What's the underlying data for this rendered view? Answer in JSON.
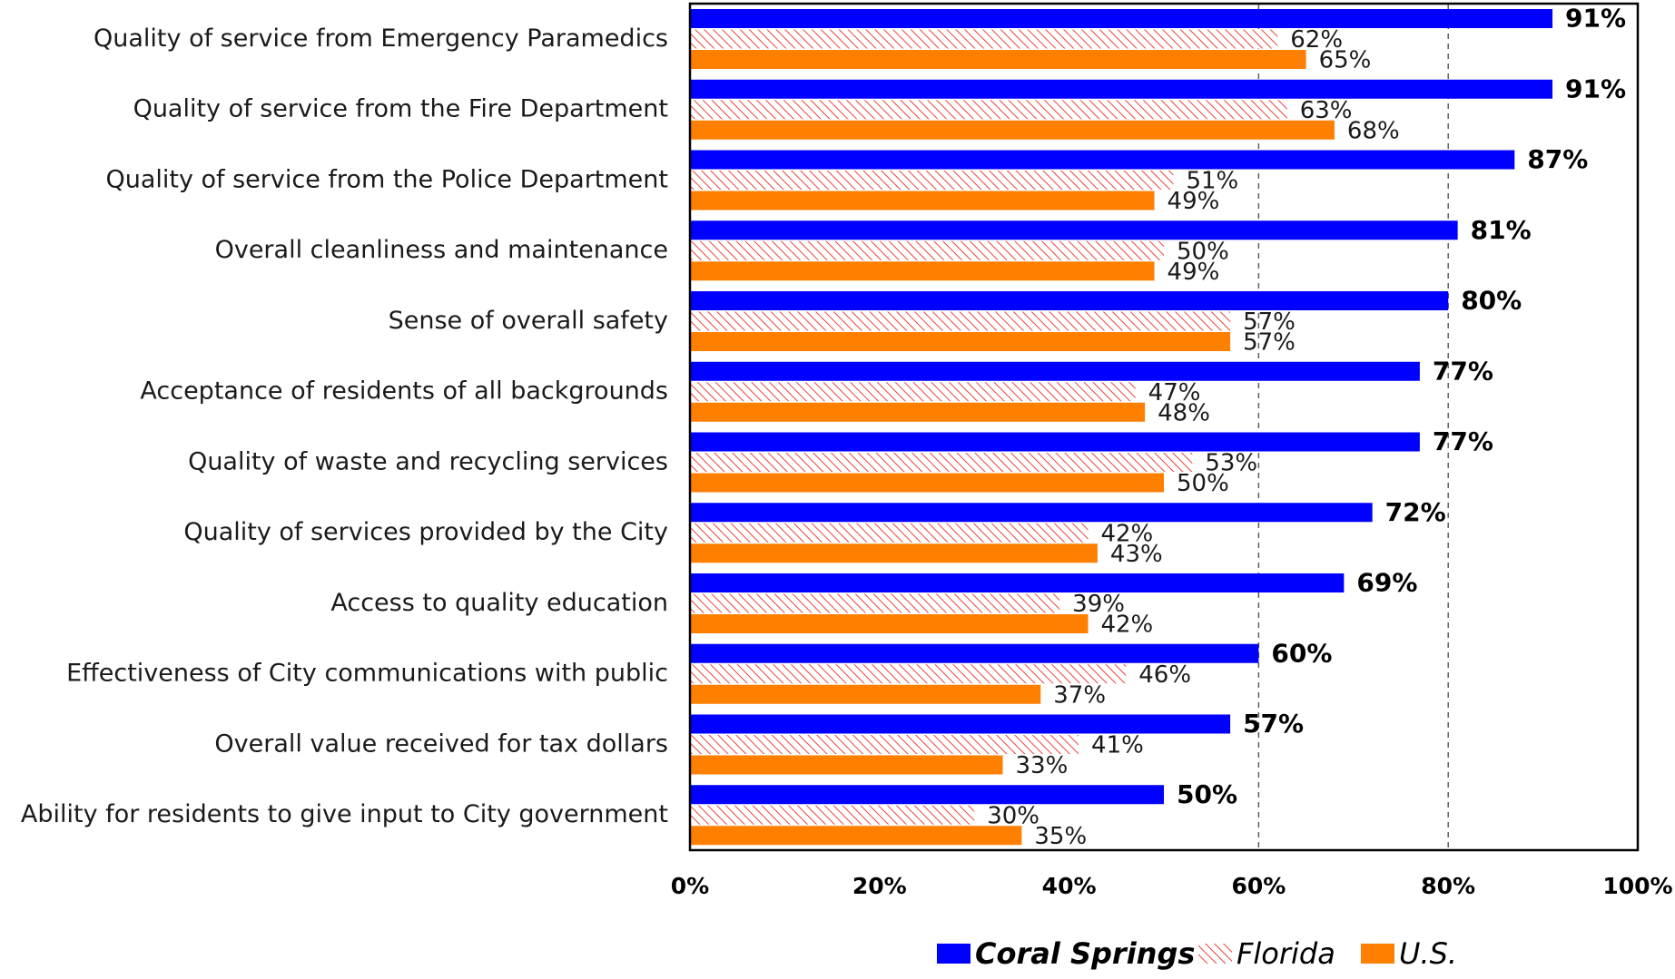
{
  "chart_data": {
    "type": "bar",
    "orientation": "horizontal",
    "categories": [
      "Quality of service from Emergency Paramedics",
      "Quality of service from the Fire Department",
      "Quality of service from the Police Department",
      "Overall cleanliness and maintenance",
      "Sense of overall safety",
      "Acceptance of residents of all backgrounds",
      "Quality of waste and recycling services",
      "Quality of services provided by the City",
      "Access to quality education",
      "Effectiveness of City communications with public",
      "Overall value received for tax dollars",
      "Ability for residents to give input to City government"
    ],
    "series": [
      {
        "name": "Coral Springs",
        "color": "#0000ff",
        "pattern": "solid",
        "values": [
          91,
          91,
          87,
          81,
          80,
          77,
          77,
          72,
          69,
          60,
          57,
          50
        ],
        "labels": [
          "91%",
          "91%",
          "87%",
          "81%",
          "80%",
          "77%",
          "77%",
          "72%",
          "69%",
          "60%",
          "57%",
          "50%"
        ]
      },
      {
        "name": "Florida",
        "color": "#e8433a",
        "pattern": "hatched",
        "values": [
          62,
          63,
          51,
          50,
          57,
          47,
          53,
          42,
          39,
          46,
          41,
          30
        ],
        "labels": [
          "62%",
          "63%",
          "51%",
          "50%",
          "57%",
          "47%",
          "53%",
          "42%",
          "39%",
          "46%",
          "41%",
          "30%"
        ]
      },
      {
        "name": "U.S.",
        "color": "#ff7f00",
        "pattern": "solid",
        "values": [
          65,
          68,
          49,
          49,
          57,
          48,
          50,
          43,
          42,
          37,
          33,
          35
        ],
        "labels": [
          "65%",
          "68%",
          "49%",
          "49%",
          "57%",
          "48%",
          "50%",
          "43%",
          "42%",
          "37%",
          "33%",
          "35%"
        ]
      }
    ],
    "xlim": [
      0,
      100
    ],
    "xticks": [
      0,
      20,
      40,
      60,
      80,
      100
    ],
    "xtick_labels": [
      "0%",
      "20%",
      "40%",
      "60%",
      "80%",
      "100%"
    ],
    "gridlines": [
      60,
      80
    ],
    "grid": "vertical dashed",
    "legend_position": "bottom",
    "legend": [
      "Coral Springs",
      "Florida",
      "U.S."
    ]
  }
}
